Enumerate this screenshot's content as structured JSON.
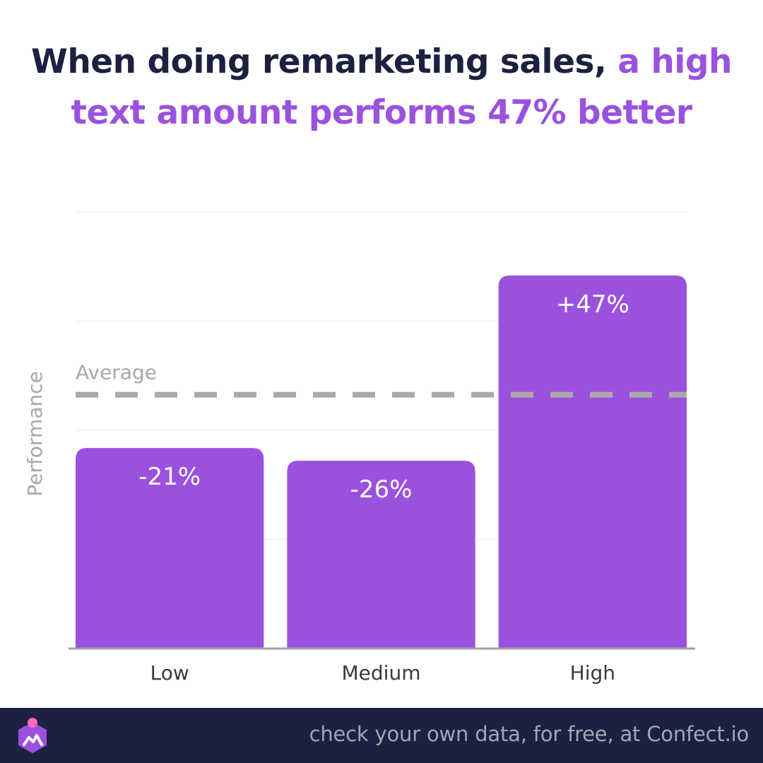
{
  "title": {
    "main": "When doing remarketing sales,",
    "highlight": "a high text amount performs 47% better"
  },
  "colors": {
    "bar": "#9a52de",
    "accent": "#9a52de",
    "dark": "#1d2140",
    "grid": "#ececec",
    "average": "#aaaaaa"
  },
  "chart_data": {
    "type": "bar",
    "categories": [
      "Low",
      "Medium",
      "High"
    ],
    "values": [
      -21,
      -26,
      47
    ],
    "value_labels": [
      "-21%",
      "-26%",
      "+47%"
    ],
    "ylabel": "Performance",
    "average_label": "Average",
    "average_value": 0,
    "ylim": [
      -100,
      72
    ],
    "grid": true
  },
  "footer": {
    "text": "check your own data, for free, at Confect.io",
    "logo_icon": "confect-logo-icon"
  }
}
